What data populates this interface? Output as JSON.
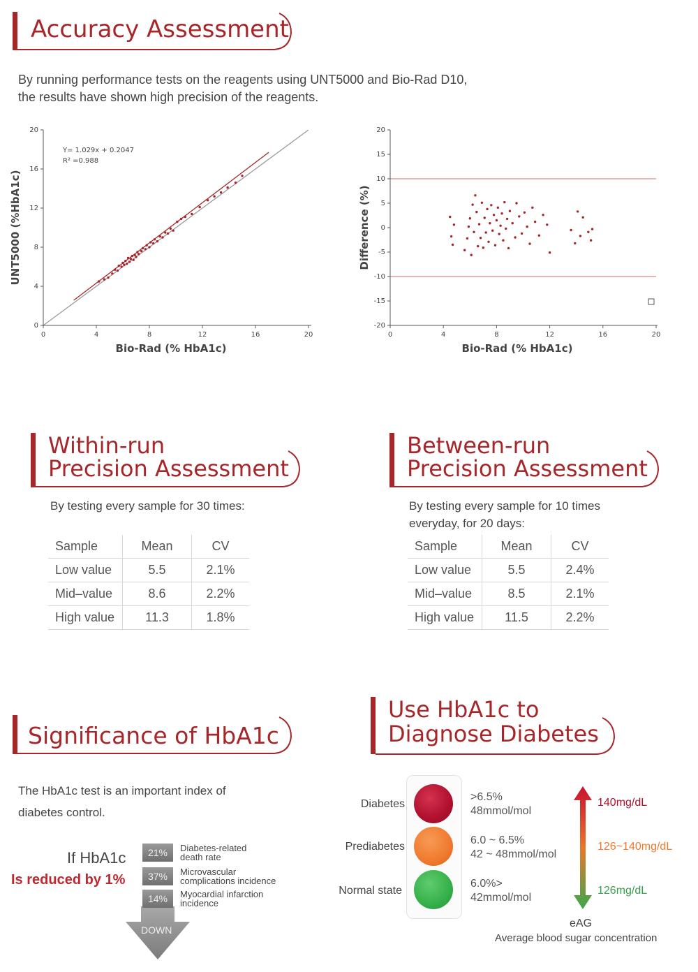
{
  "accuracy": {
    "title": "Accuracy Assessment",
    "description_line1": "By running performance tests on the reagents using UNT5000 and Bio-Rad D10,",
    "description_line2": "the results have shown high precision of the reagents."
  },
  "chart_data": [
    {
      "type": "scatter",
      "xlabel": "Bio-Rad (% HbA1c)",
      "ylabel": "UNT5000 (%HbA1c)",
      "xlim": [
        0,
        20
      ],
      "ylim": [
        0,
        20
      ],
      "xticks": [
        "0",
        "4",
        "8",
        "12",
        "16",
        "20"
      ],
      "yticks": [
        "0",
        "4",
        "8",
        "12",
        "16",
        "20"
      ],
      "equation": "Y= 1.029x + 0.2047",
      "r2_label": "R² =0.988",
      "identity_line": {
        "x": [
          0,
          20
        ],
        "y": [
          0,
          20
        ],
        "color": "#9a9a9a"
      },
      "regression_line": {
        "x": [
          2.3,
          17
        ],
        "y": [
          2.57,
          17.7
        ],
        "color": "#a6262a"
      },
      "color": "#a6262a",
      "points": [
        [
          4.2,
          4.5
        ],
        [
          4.6,
          4.7
        ],
        [
          4.9,
          4.9
        ],
        [
          5.2,
          5.3
        ],
        [
          5.4,
          5.7
        ],
        [
          5.6,
          5.6
        ],
        [
          5.7,
          6.1
        ],
        [
          5.9,
          6.0
        ],
        [
          6.0,
          6.4
        ],
        [
          6.1,
          6.2
        ],
        [
          6.2,
          6.6
        ],
        [
          6.3,
          6.3
        ],
        [
          6.4,
          6.9
        ],
        [
          6.5,
          6.5
        ],
        [
          6.6,
          6.8
        ],
        [
          6.7,
          7.1
        ],
        [
          6.8,
          6.7
        ],
        [
          6.9,
          7.2
        ],
        [
          7.0,
          7.0
        ],
        [
          7.1,
          7.5
        ],
        [
          7.2,
          7.3
        ],
        [
          7.4,
          7.6
        ],
        [
          7.5,
          7.9
        ],
        [
          7.7,
          7.8
        ],
        [
          7.8,
          8.2
        ],
        [
          8.0,
          8.0
        ],
        [
          8.1,
          8.5
        ],
        [
          8.3,
          8.4
        ],
        [
          8.4,
          8.8
        ],
        [
          8.6,
          8.6
        ],
        [
          8.8,
          9.1
        ],
        [
          9.0,
          9.0
        ],
        [
          9.2,
          9.5
        ],
        [
          9.4,
          9.4
        ],
        [
          9.6,
          9.9
        ],
        [
          9.8,
          9.7
        ],
        [
          10.1,
          10.6
        ],
        [
          10.4,
          10.9
        ],
        [
          10.7,
          11.1
        ],
        [
          11.2,
          11.4
        ],
        [
          11.8,
          12.1
        ],
        [
          12.4,
          12.8
        ],
        [
          12.9,
          13.2
        ],
        [
          13.4,
          13.6
        ],
        [
          13.9,
          14.1
        ],
        [
          14.5,
          14.6
        ],
        [
          15.0,
          15.3
        ]
      ]
    },
    {
      "type": "scatter",
      "xlabel": "Bio-Rad (% HbA1c)",
      "ylabel": "Difference (%)",
      "xlim": [
        0,
        20
      ],
      "ylim": [
        -20,
        20
      ],
      "xticks": [
        "0",
        "4",
        "8",
        "12",
        "16",
        "20"
      ],
      "yticks": [
        "20",
        "15",
        "10",
        "5",
        "0",
        "-5",
        "-10",
        "-15",
        "-20"
      ],
      "limit_lines": [
        10,
        -10
      ],
      "color": "#a6262a",
      "points": [
        [
          4.5,
          2.2
        ],
        [
          4.6,
          -1.8
        ],
        [
          4.7,
          -3.5
        ],
        [
          4.8,
          0.6
        ],
        [
          5.6,
          -4.6
        ],
        [
          5.8,
          -2.2
        ],
        [
          5.9,
          0.2
        ],
        [
          6.0,
          1.9
        ],
        [
          6.1,
          -5.6
        ],
        [
          6.2,
          4.7
        ],
        [
          6.3,
          -0.9
        ],
        [
          6.4,
          6.6
        ],
        [
          6.5,
          3.2
        ],
        [
          6.6,
          -3.8
        ],
        [
          6.7,
          0.7
        ],
        [
          6.8,
          -2.1
        ],
        [
          6.9,
          5.1
        ],
        [
          7.0,
          -4.1
        ],
        [
          7.1,
          2.0
        ],
        [
          7.2,
          -1.0
        ],
        [
          7.3,
          3.8
        ],
        [
          7.4,
          -2.9
        ],
        [
          7.5,
          0.9
        ],
        [
          7.6,
          4.6
        ],
        [
          7.7,
          -0.6
        ],
        [
          7.8,
          2.6
        ],
        [
          7.9,
          -3.6
        ],
        [
          8.0,
          1.5
        ],
        [
          8.1,
          4.1
        ],
        [
          8.2,
          -1.3
        ],
        [
          8.3,
          0.4
        ],
        [
          8.4,
          2.9
        ],
        [
          8.5,
          -2.6
        ],
        [
          8.6,
          5.2
        ],
        [
          8.7,
          -0.2
        ],
        [
          8.8,
          1.8
        ],
        [
          8.9,
          -4.2
        ],
        [
          9.0,
          3.4
        ],
        [
          9.2,
          0.9
        ],
        [
          9.4,
          -2.0
        ],
        [
          9.5,
          5.0
        ],
        [
          9.7,
          2.3
        ],
        [
          9.9,
          -1.2
        ],
        [
          10.1,
          3.1
        ],
        [
          10.3,
          0.2
        ],
        [
          10.5,
          -3.3
        ],
        [
          10.7,
          4.1
        ],
        [
          10.9,
          1.2
        ],
        [
          11.2,
          -1.6
        ],
        [
          11.5,
          2.6
        ],
        [
          11.8,
          0.6
        ],
        [
          12.0,
          -5.1
        ],
        [
          13.6,
          -0.5
        ],
        [
          13.9,
          -3.2
        ],
        [
          14.1,
          3.3
        ],
        [
          14.3,
          -1.7
        ],
        [
          14.5,
          2.1
        ],
        [
          14.9,
          -0.9
        ],
        [
          15.1,
          -2.6
        ],
        [
          15.2,
          -0.3
        ]
      ]
    }
  ],
  "within_run": {
    "title_line1": "Within-run",
    "title_line2": "Precision Assessment",
    "description": "By testing every sample for 30 times:",
    "headers": [
      "Sample",
      "Mean",
      "CV"
    ],
    "rows": [
      [
        "Low value",
        "5.5",
        "2.1%"
      ],
      [
        "Mid–value",
        "8.6",
        "2.2%"
      ],
      [
        "High value",
        "11.3",
        "1.8%"
      ]
    ]
  },
  "between_run": {
    "title_line1": "Between-run",
    "title_line2": "Precision Assessment",
    "description_line1": "By testing every sample for 10 times",
    "description_line2": "everyday, for 20 days:",
    "headers": [
      "Sample",
      "Mean",
      "CV"
    ],
    "rows": [
      [
        "Low value",
        "5.5",
        "2.4%"
      ],
      [
        "Mid–value",
        "8.5",
        "2.1%"
      ],
      [
        "High value",
        "11.5",
        "2.2%"
      ]
    ]
  },
  "significance": {
    "title": "Significance of HbA1c",
    "description_line1": "The HbA1c test is an important index of",
    "description_line2": "diabetes control.",
    "if_label": "If HbA1c",
    "reduced_label": "Is reduced by 1%",
    "down_label": "DOWN",
    "effects": [
      {
        "percent": "21%",
        "line1": "Diabetes-related",
        "line2": "death rate"
      },
      {
        "percent": "37%",
        "line1": "Microvascular",
        "line2": "complications incidence"
      },
      {
        "percent": "14%",
        "line1": "Myocardial infarction",
        "line2": "incidence"
      }
    ]
  },
  "diagnose": {
    "title_line1": "Use HbA1c to",
    "title_line2": "Diagnose Diabetes",
    "states": [
      {
        "label": "Diabetes",
        "color": "#b0102e",
        "line1": ">6.5%",
        "line2": "48mmol/mol",
        "eag": "140mg/dL",
        "eag_color": "#b0102e"
      },
      {
        "label": "Prediabetes",
        "color": "#f07a2e",
        "line1": "6.0 ~ 6.5%",
        "line2": "42 ~ 48mmol/mol",
        "eag": "126~140mg/dL",
        "eag_color": "#f07a2e"
      },
      {
        "label": "Normal state",
        "color": "#35b04a",
        "line1": "6.0%>",
        "line2": "42mmol/mol",
        "eag": "126mg/dL",
        "eag_color": "#35a04a"
      }
    ],
    "eag_title": "eAG",
    "eag_subtitle": "Average blood sugar concentration"
  }
}
